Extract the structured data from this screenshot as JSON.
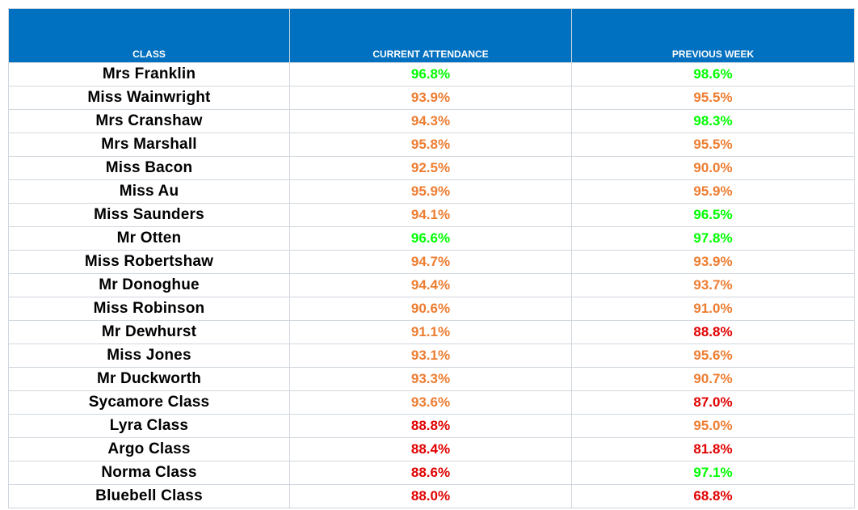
{
  "colors": {
    "header_bg": "#0070c0",
    "header_text": "#ffffff",
    "good": "#00ff00",
    "warning": "#ed7d31",
    "bad": "#e00000"
  },
  "headers": [
    "CLASS",
    "CURRENT ATTENDANCE",
    "PREVIOUS WEEK"
  ],
  "rows": [
    {
      "name": "Mrs Franklin",
      "current": "96.8%",
      "current_status": "green",
      "previous": "98.6%",
      "previous_status": "green"
    },
    {
      "name": "Miss Wainwright",
      "current": "93.9%",
      "current_status": "orange",
      "previous": "95.5%",
      "previous_status": "orange"
    },
    {
      "name": "Mrs Cranshaw",
      "current": "94.3%",
      "current_status": "orange",
      "previous": "98.3%",
      "previous_status": "green"
    },
    {
      "name": "Mrs Marshall",
      "current": "95.8%",
      "current_status": "orange",
      "previous": "95.5%",
      "previous_status": "orange"
    },
    {
      "name": "Miss Bacon",
      "current": "92.5%",
      "current_status": "orange",
      "previous": "90.0%",
      "previous_status": "orange"
    },
    {
      "name": "Miss Au",
      "current": "95.9%",
      "current_status": "orange",
      "previous": "95.9%",
      "previous_status": "orange"
    },
    {
      "name": "Miss Saunders",
      "current": "94.1%",
      "current_status": "orange",
      "previous": "96.5%",
      "previous_status": "green"
    },
    {
      "name": "Mr Otten",
      "current": "96.6%",
      "current_status": "green",
      "previous": "97.8%",
      "previous_status": "green"
    },
    {
      "name": "Miss Robertshaw",
      "current": "94.7%",
      "current_status": "orange",
      "previous": "93.9%",
      "previous_status": "orange"
    },
    {
      "name": "Mr Donoghue",
      "current": "94.4%",
      "current_status": "orange",
      "previous": "93.7%",
      "previous_status": "orange"
    },
    {
      "name": "Miss Robinson",
      "current": "90.6%",
      "current_status": "orange",
      "previous": "91.0%",
      "previous_status": "orange"
    },
    {
      "name": "Mr Dewhurst",
      "current": "91.1%",
      "current_status": "orange",
      "previous": "88.8%",
      "previous_status": "red"
    },
    {
      "name": "Miss Jones",
      "current": "93.1%",
      "current_status": "orange",
      "previous": "95.6%",
      "previous_status": "orange"
    },
    {
      "name": "Mr Duckworth",
      "current": "93.3%",
      "current_status": "orange",
      "previous": "90.7%",
      "previous_status": "orange"
    },
    {
      "name": "Sycamore Class",
      "current": "93.6%",
      "current_status": "orange",
      "previous": "87.0%",
      "previous_status": "red"
    },
    {
      "name": "Lyra Class",
      "current": "88.8%",
      "current_status": "red",
      "previous": "95.0%",
      "previous_status": "orange"
    },
    {
      "name": "Argo Class",
      "current": "88.4%",
      "current_status": "red",
      "previous": "81.8%",
      "previous_status": "red"
    },
    {
      "name": "Norma Class",
      "current": "88.6%",
      "current_status": "red",
      "previous": "97.1%",
      "previous_status": "green"
    },
    {
      "name": "Bluebell Class",
      "current": "88.0%",
      "current_status": "red",
      "previous": "68.8%",
      "previous_status": "red"
    }
  ]
}
